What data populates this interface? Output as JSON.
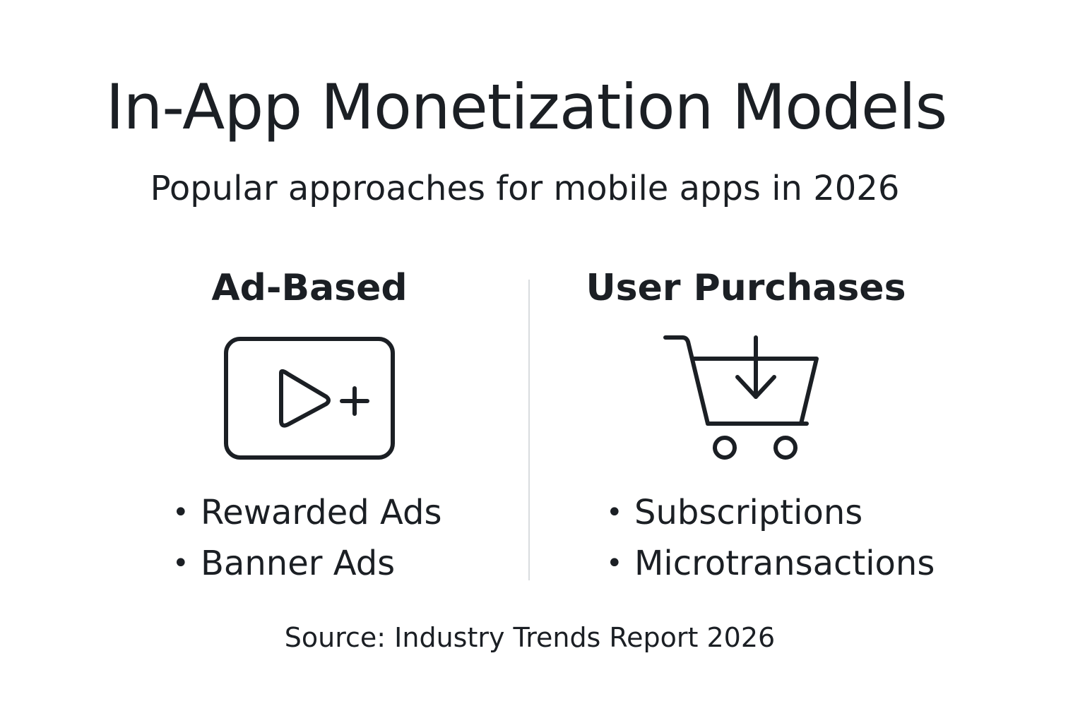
{
  "title": "In-App Monetization Models",
  "subtitle": "Popular approaches for mobile apps in 2026",
  "columns": [
    {
      "heading": "Ad-Based",
      "icon": "video-ad-play-plus-icon",
      "items": [
        "Rewarded Ads",
        "Banner Ads"
      ]
    },
    {
      "heading": "User Purchases",
      "icon": "shopping-cart-download-icon",
      "items": [
        "Subscriptions",
        "Microtransactions"
      ]
    }
  ],
  "source": "Source: Industry Trends Report 2026",
  "colors": {
    "text": "#1b1f24",
    "divider": "#d9dcdf",
    "background": "#ffffff"
  }
}
